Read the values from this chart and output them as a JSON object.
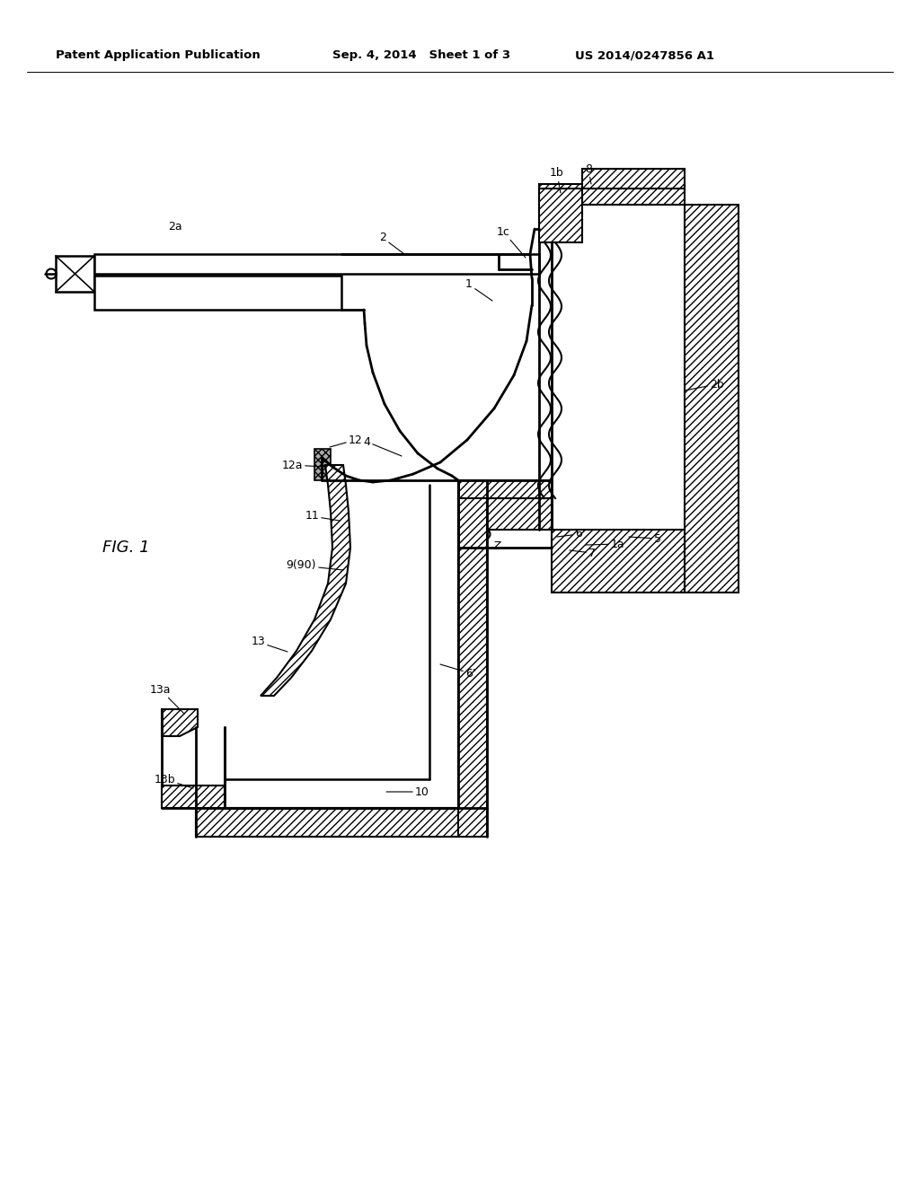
{
  "bg_color": "#ffffff",
  "header_left": "Patent Application Publication",
  "header_mid": "Sep. 4, 2014   Sheet 1 of 3",
  "header_right": "US 2014/0247856 A1"
}
